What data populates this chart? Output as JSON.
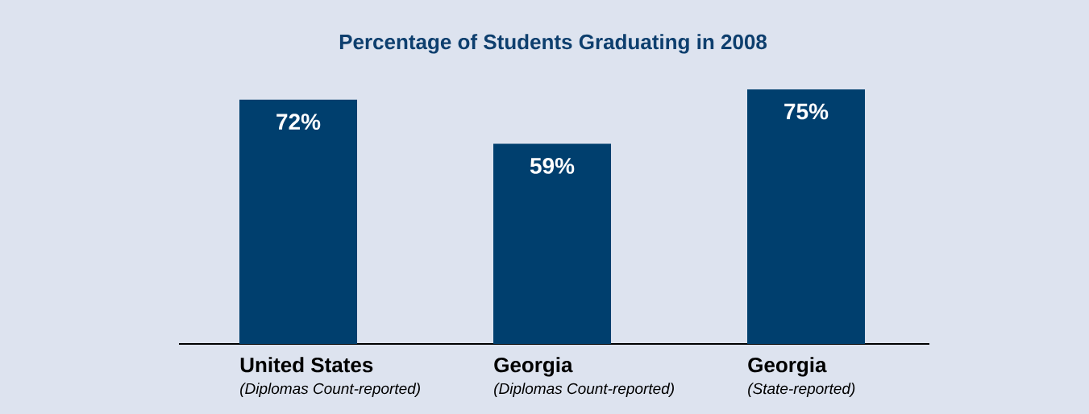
{
  "chart_data": {
    "type": "bar",
    "title": "Percentage of Students Graduating in 2008",
    "categories": [
      "United States",
      "Georgia",
      "Georgia"
    ],
    "values": [
      72,
      59,
      75
    ],
    "value_labels": [
      "72%",
      "59%",
      "75%"
    ],
    "color": "#003f6e",
    "annotations": [
      "(Diplomas Count-reported)",
      "(Diplomas Count-reported)",
      "(State-reported)"
    ]
  }
}
